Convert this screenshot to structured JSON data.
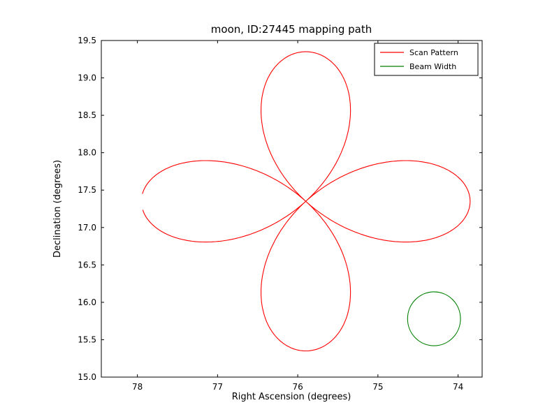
{
  "chart_data": {
    "type": "line",
    "title": "moon, ID:27445 mapping path",
    "xlabel": "Right Ascension (degrees)",
    "ylabel": "Declination (degrees)",
    "x_axis": {
      "inverted": true,
      "lim": [
        78.45,
        73.7
      ],
      "ticks": [
        "78",
        "77",
        "76",
        "75",
        "74"
      ]
    },
    "y_axis": {
      "lim": [
        15.0,
        19.5
      ],
      "ticks": [
        "15.0",
        "15.5",
        "16.0",
        "16.5",
        "17.0",
        "17.5",
        "18.0",
        "18.5",
        "19.0",
        "19.5"
      ]
    },
    "grid": false,
    "series": [
      {
        "name": "Scan Pattern",
        "color": "#ff0000",
        "shape": "rose",
        "equation": "r = cos(2*theta), 4-petal rose",
        "petals": 4,
        "center": {
          "ra": 75.9,
          "dec": 17.35
        },
        "amplitude": {
          "ra": 2.05,
          "dec": 2.0
        },
        "extent": {
          "ra_max": 77.95,
          "ra_min": 73.85,
          "dec_max": 19.35,
          "dec_min": 15.35
        }
      },
      {
        "name": "Beam Width",
        "color": "#007f00",
        "shape": "circle",
        "center": {
          "ra": 74.3,
          "dec": 15.78
        },
        "radius": {
          "ra": 0.33,
          "dec": 0.36
        }
      }
    ],
    "legend": {
      "position": "upper right",
      "entries": [
        {
          "label": "Scan Pattern",
          "color": "#ff0000"
        },
        {
          "label": "Beam Width",
          "color": "#007f00"
        }
      ]
    }
  }
}
